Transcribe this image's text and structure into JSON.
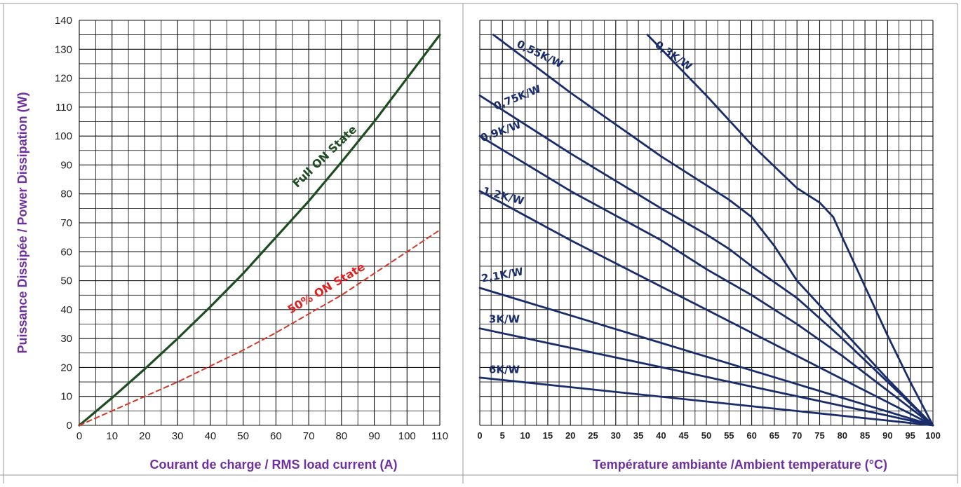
{
  "colors": {
    "accent_purple": "#7030a0",
    "full_on_green": "#1e4d21",
    "half_on_red": "#d03a2a",
    "heatsink_navy": "#1a2d6b",
    "grid": "#111111"
  },
  "chart_data": [
    {
      "type": "line",
      "title": "",
      "xlabel": "Courant de charge / RMS load current (A)",
      "ylabel": "Puissance Dissipée / Power Dissipation (W)",
      "xlim": [
        0,
        110
      ],
      "ylim": [
        0,
        140
      ],
      "x_ticks": [
        "0",
        "10",
        "20",
        "30",
        "40",
        "50",
        "60",
        "70",
        "80",
        "90",
        "100",
        "110"
      ],
      "y_ticks": [
        "0",
        "10",
        "20",
        "30",
        "40",
        "50",
        "60",
        "70",
        "80",
        "90",
        "100",
        "110",
        "120",
        "130",
        "140"
      ],
      "grid": true,
      "series": [
        {
          "name": "Full ON State",
          "style": "solid",
          "color": "#1e4d21",
          "x": [
            0,
            10,
            20,
            30,
            40,
            50,
            60,
            70,
            80,
            90,
            100,
            110
          ],
          "y": [
            0,
            9.5,
            19.5,
            30,
            41,
            52.5,
            65,
            77.5,
            91,
            105,
            120,
            135
          ]
        },
        {
          "name": "50% ON State",
          "style": "dashed",
          "color": "#d03a2a",
          "x": [
            0,
            10,
            20,
            30,
            40,
            50,
            60,
            70,
            80,
            90,
            100,
            110
          ],
          "y": [
            0,
            5,
            10,
            15,
            20.5,
            26,
            32,
            38.5,
            45,
            52.5,
            60,
            67.5
          ]
        }
      ]
    },
    {
      "type": "line",
      "title": "",
      "xlabel": "Température ambiante /Ambient temperature (°C)",
      "ylabel": "",
      "xlim": [
        0,
        100
      ],
      "ylim": [
        0,
        140
      ],
      "x_ticks": [
        "0",
        "5",
        "10",
        "15",
        "20",
        "25",
        "30",
        "35",
        "40",
        "45",
        "50",
        "55",
        "60",
        "65",
        "70",
        "75",
        "80",
        "85",
        "90",
        "95",
        "100"
      ],
      "grid": true,
      "series": [
        {
          "name": "0,3K/W",
          "color": "#1a2d6b",
          "x": [
            37,
            50,
            60,
            70,
            75,
            78,
            80,
            85,
            90,
            95,
            100
          ],
          "y": [
            135,
            114,
            97,
            82,
            77,
            72,
            65,
            48,
            31,
            15,
            0
          ]
        },
        {
          "name": "0,55K/W",
          "color": "#1a2d6b",
          "x": [
            3,
            20,
            40,
            50,
            55,
            60,
            65,
            70,
            80,
            90,
            100
          ],
          "y": [
            135,
            115,
            93,
            83,
            78,
            72,
            62,
            50,
            33,
            16,
            0
          ]
        },
        {
          "name": "0,75K/W",
          "color": "#1a2d6b",
          "x": [
            0,
            20,
            40,
            50,
            55,
            60,
            70,
            80,
            90,
            100
          ],
          "y": [
            114,
            94,
            75,
            66,
            61,
            55,
            44,
            30,
            15,
            0
          ]
        },
        {
          "name": "0,9K/W",
          "color": "#1a2d6b",
          "x": [
            0,
            20,
            40,
            50,
            60,
            70,
            80,
            90,
            100
          ],
          "y": [
            100,
            81,
            64,
            54,
            45,
            35,
            24,
            12,
            0
          ]
        },
        {
          "name": "1,2K/W",
          "color": "#1a2d6b",
          "x": [
            0,
            20,
            40,
            60,
            80,
            100
          ],
          "y": [
            81,
            64,
            48,
            32,
            16,
            0
          ]
        },
        {
          "name": "2,1K/W",
          "color": "#1a2d6b",
          "x": [
            0,
            100
          ],
          "y": [
            47.5,
            0
          ]
        },
        {
          "name": "3K/W",
          "color": "#1a2d6b",
          "x": [
            0,
            100
          ],
          "y": [
            33.5,
            0
          ]
        },
        {
          "name": "6K/W",
          "color": "#1a2d6b",
          "x": [
            0,
            100
          ],
          "y": [
            16.5,
            0
          ]
        }
      ]
    }
  ]
}
